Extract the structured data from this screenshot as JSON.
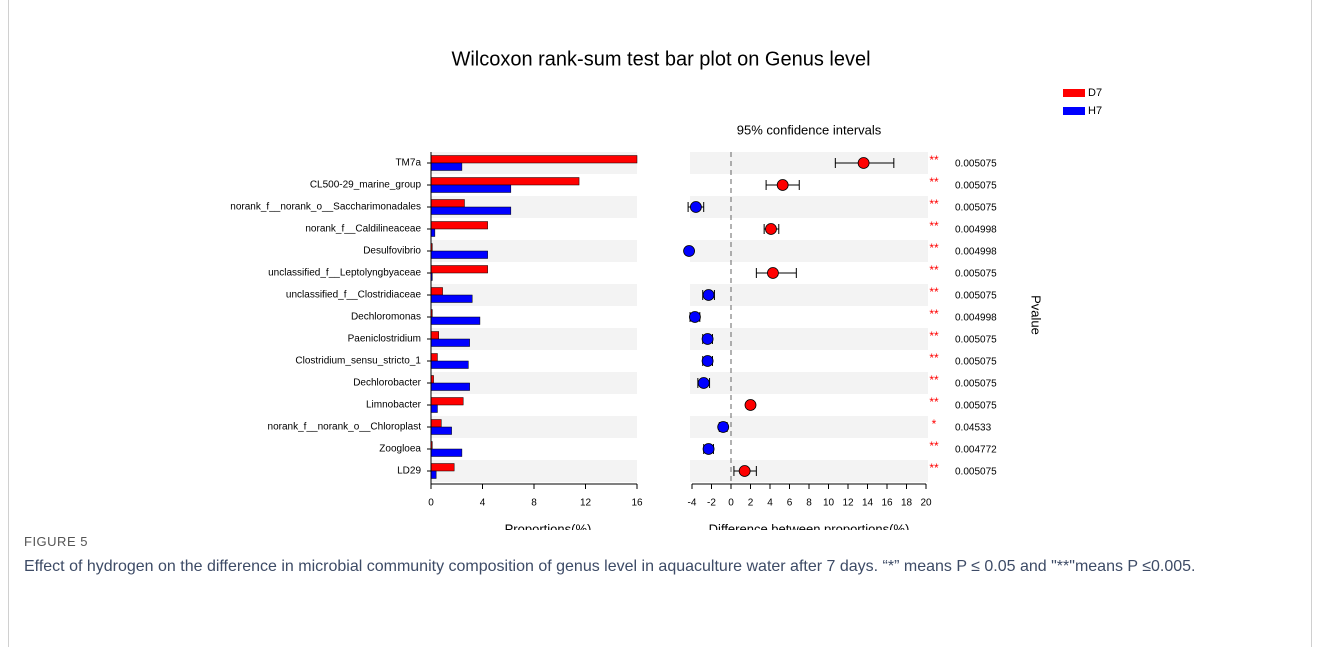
{
  "figure": {
    "label": "FIGURE 5",
    "caption": "Effect of hydrogen on the difference in microbial community composition of genus level in aquaculture water after 7 days. “*” means P ≤ 0.05 and \"**\"means P ≤0.005."
  },
  "chart_data": [
    {
      "type": "hbar",
      "title": "Wilcoxon rank-sum test bar plot on Genus level",
      "x_label": "Proportions(%)",
      "categories": [
        "TM7a",
        "CL500-29_marine_group",
        "norank_f__norank_o__Saccharimonadales",
        "norank_f__Caldilineaceae",
        "Desulfovibrio",
        "unclassified_f__Leptolyngbyaceae",
        "unclassified_f__Clostridiaceae",
        "Dechloromonas",
        "Paeniclostridium",
        "Clostridium_sensu_stricto_1",
        "Dechlorobacter",
        "Limnobacter",
        "norank_f__norank_o__Chloroplast",
        "Zoogloea",
        "LD29"
      ],
      "series": [
        {
          "name": "D7",
          "color": "#ff0000",
          "values": [
            16.0,
            11.5,
            2.6,
            4.4,
            0.1,
            4.4,
            0.9,
            0.1,
            0.6,
            0.5,
            0.2,
            2.5,
            0.8,
            0.1,
            1.8
          ]
        },
        {
          "name": "H7",
          "color": "#0000ff",
          "values": [
            2.4,
            6.2,
            6.2,
            0.3,
            4.4,
            0.1,
            3.2,
            3.8,
            3.0,
            2.9,
            3.0,
            0.5,
            1.6,
            2.4,
            0.4
          ]
        }
      ],
      "xlim": [
        0,
        16
      ],
      "xticks": [
        0,
        4,
        8,
        12,
        16
      ],
      "legend": "upper right"
    },
    {
      "type": "dot",
      "title": "95% confidence intervals",
      "x_label": "Difference between proportions(%)",
      "values": [
        13.6,
        5.3,
        -3.6,
        4.1,
        -4.3,
        4.3,
        -2.3,
        -3.7,
        -2.4,
        -2.4,
        -2.8,
        2.0,
        -0.8,
        -2.3,
        1.4
      ],
      "ci_low": [
        10.7,
        3.6,
        -4.4,
        3.4,
        -4.6,
        2.6,
        -2.9,
        -4.2,
        -2.9,
        -2.9,
        -3.4,
        1.7,
        -1.2,
        -2.8,
        0.3
      ],
      "ci_high": [
        16.7,
        7.0,
        -2.8,
        4.9,
        -4.0,
        6.7,
        -1.7,
        -3.2,
        -1.9,
        -1.9,
        -2.2,
        2.3,
        -0.4,
        -1.8,
        2.6
      ],
      "significance": [
        "**",
        "**",
        "**",
        "**",
        "**",
        "**",
        "**",
        "**",
        "**",
        "**",
        "**",
        "**",
        "*",
        "**",
        "**"
      ],
      "pvalues": [
        0.005075,
        0.005075,
        0.005075,
        0.004998,
        0.004998,
        0.005075,
        0.005075,
        0.004998,
        0.005075,
        0.005075,
        0.005075,
        0.005075,
        0.04533,
        0.004772,
        0.005075
      ],
      "pvalue_label": "Pvalue",
      "xlim": [
        -4,
        20
      ],
      "xticks": [
        -4,
        -2,
        0,
        2,
        4,
        6,
        8,
        10,
        12,
        14,
        16,
        18,
        20
      ]
    }
  ]
}
